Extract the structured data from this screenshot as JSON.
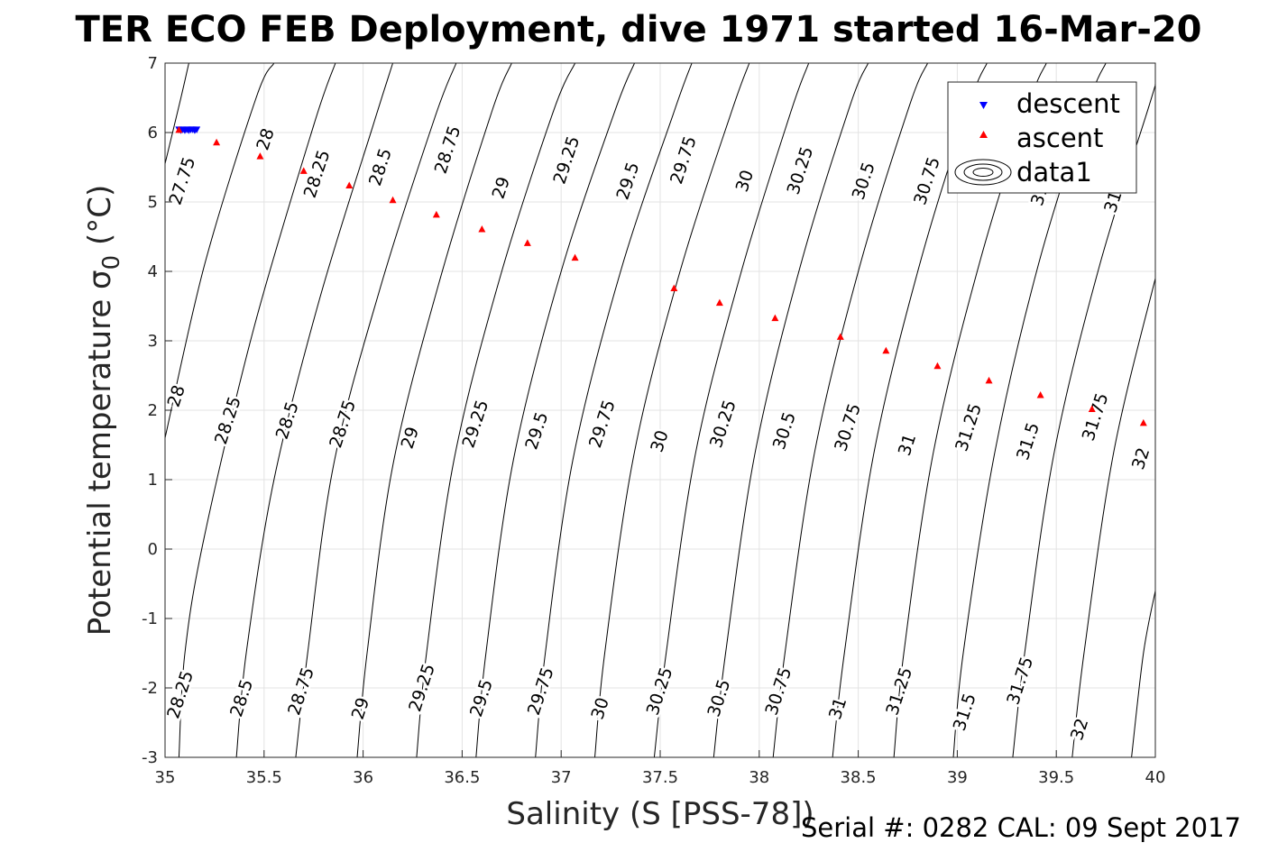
{
  "chart_data": {
    "type": "scatter",
    "title": "TER ECO FEB Deployment, dive 1971 started 16-Mar-20",
    "xlabel": "Salinity (S [PSS-78])",
    "ylabel": "Potential temperature σ",
    "ylabel_subscript": "0",
    "ylabel_unit": " (°C)",
    "footer": "Serial #: 0282  CAL: 09 Sept 2017",
    "xlim": [
      35,
      40
    ],
    "ylim": [
      -3,
      7
    ],
    "xticks": [
      35,
      35.5,
      36,
      36.5,
      37,
      37.5,
      38,
      38.5,
      39,
      39.5,
      40
    ],
    "xtick_labels": [
      "35",
      "35.5",
      "36",
      "36.5",
      "37",
      "37.5",
      "38",
      "38.5",
      "39",
      "39.5",
      "40"
    ],
    "yticks": [
      -3,
      -2,
      -1,
      0,
      1,
      2,
      3,
      4,
      5,
      6,
      7
    ],
    "ytick_labels": [
      "-3",
      "-2",
      "-1",
      "0",
      "1",
      "2",
      "3",
      "4",
      "5",
      "6",
      "7"
    ],
    "grid": true,
    "legend_position": "top-right",
    "legend": [
      "descent",
      "ascent",
      "data1"
    ],
    "series": [
      {
        "name": "descent",
        "marker": "triangle-down",
        "color": "#0000ff",
        "points": [
          [
            35.07,
            6.04
          ],
          [
            35.08,
            6.03
          ],
          [
            35.09,
            6.04
          ],
          [
            35.1,
            6.03
          ],
          [
            35.11,
            6.04
          ],
          [
            35.12,
            6.03
          ],
          [
            35.13,
            6.04
          ],
          [
            35.14,
            6.04
          ],
          [
            35.15,
            6.03
          ],
          [
            35.16,
            6.04
          ]
        ]
      },
      {
        "name": "ascent",
        "marker": "triangle-up",
        "color": "#ff0000",
        "points": [
          [
            35.07,
            6.04
          ],
          [
            35.26,
            5.86
          ],
          [
            35.48,
            5.66
          ],
          [
            35.7,
            5.45
          ],
          [
            35.93,
            5.24
          ],
          [
            36.15,
            5.03
          ],
          [
            36.37,
            4.82
          ],
          [
            36.6,
            4.61
          ],
          [
            36.83,
            4.41
          ],
          [
            37.07,
            4.2
          ],
          [
            37.57,
            3.76
          ],
          [
            37.8,
            3.55
          ],
          [
            38.08,
            3.33
          ],
          [
            38.41,
            3.06
          ],
          [
            38.64,
            2.86
          ],
          [
            38.9,
            2.64
          ],
          [
            39.16,
            2.43
          ],
          [
            39.42,
            2.22
          ],
          [
            39.68,
            2.02
          ],
          [
            39.94,
            1.82
          ]
        ]
      },
      {
        "name": "data1",
        "marker": "contour",
        "color": "#000000",
        "contours": [
          {
            "label": "27.75",
            "points": [
              [
                35.0,
                5.55
              ],
              [
                35.08,
                6.5
              ],
              [
                35.12,
                7.0
              ]
            ]
          },
          {
            "label": "28",
            "points": [
              [
                35.0,
                1.6
              ],
              [
                35.2,
                4.1
              ],
              [
                35.46,
                6.5
              ],
              [
                35.55,
                7.0
              ]
            ]
          },
          {
            "label": "28.25",
            "points": [
              [
                35.07,
                -3.0
              ],
              [
                35.1,
                -1.5
              ],
              [
                35.2,
                0.2
              ],
              [
                35.45,
                3.2
              ],
              [
                35.75,
                6.1
              ],
              [
                35.86,
                7.0
              ]
            ]
          },
          {
            "label": "28.5",
            "points": [
              [
                35.36,
                -3.0
              ],
              [
                35.41,
                -1.5
              ],
              [
                35.55,
                1.0
              ],
              [
                35.78,
                3.6
              ],
              [
                36.05,
                6.1
              ],
              [
                36.15,
                7.0
              ]
            ]
          },
          {
            "label": "28.75",
            "points": [
              [
                35.66,
                -3.0
              ],
              [
                35.72,
                -1.5
              ],
              [
                35.85,
                1.2
              ],
              [
                36.08,
                3.7
              ],
              [
                36.36,
                6.2
              ],
              [
                36.47,
                7.0
              ]
            ]
          },
          {
            "label": "29",
            "points": [
              [
                35.97,
                -3.0
              ],
              [
                36.02,
                -1.5
              ],
              [
                36.15,
                1.2
              ],
              [
                36.38,
                3.8
              ],
              [
                36.65,
                6.3
              ],
              [
                36.75,
                7.0
              ]
            ]
          },
          {
            "label": "29.25",
            "points": [
              [
                36.27,
                -3.0
              ],
              [
                36.32,
                -1.5
              ],
              [
                36.46,
                1.3
              ],
              [
                36.69,
                3.9
              ],
              [
                36.96,
                6.3
              ],
              [
                37.07,
                7.0
              ]
            ]
          },
          {
            "label": "29.5",
            "points": [
              [
                36.57,
                -3.0
              ],
              [
                36.62,
                -1.5
              ],
              [
                36.76,
                1.3
              ],
              [
                37.0,
                4.0
              ],
              [
                37.27,
                6.3
              ],
              [
                37.37,
                7.0
              ]
            ]
          },
          {
            "label": "29.75",
            "points": [
              [
                36.87,
                -3.0
              ],
              [
                36.92,
                -1.5
              ],
              [
                37.06,
                1.3
              ],
              [
                37.3,
                4.0
              ],
              [
                37.57,
                6.3
              ],
              [
                37.66,
                7.0
              ]
            ]
          },
          {
            "label": "30",
            "points": [
              [
                37.17,
                -3.0
              ],
              [
                37.22,
                -1.5
              ],
              [
                37.37,
                1.4
              ],
              [
                37.6,
                4.0
              ],
              [
                37.86,
                6.3
              ],
              [
                37.95,
                7.0
              ]
            ]
          },
          {
            "label": "30.25",
            "points": [
              [
                37.47,
                -3.0
              ],
              [
                37.53,
                -1.5
              ],
              [
                37.68,
                1.4
              ],
              [
                37.91,
                4.0
              ],
              [
                38.16,
                6.3
              ],
              [
                38.25,
                7.0
              ]
            ]
          },
          {
            "label": "30.5",
            "points": [
              [
                37.77,
                -3.0
              ],
              [
                37.83,
                -1.5
              ],
              [
                37.98,
                1.4
              ],
              [
                38.21,
                4.1
              ],
              [
                38.46,
                6.4
              ],
              [
                38.55,
                7.0
              ]
            ]
          },
          {
            "label": "30.75",
            "points": [
              [
                38.07,
                -3.0
              ],
              [
                38.13,
                -1.5
              ],
              [
                38.28,
                1.4
              ],
              [
                38.51,
                4.1
              ],
              [
                38.76,
                6.4
              ],
              [
                38.85,
                7.0
              ]
            ]
          },
          {
            "label": "31",
            "points": [
              [
                38.37,
                -3.0
              ],
              [
                38.43,
                -1.5
              ],
              [
                38.58,
                1.4
              ],
              [
                38.81,
                4.1
              ],
              [
                39.06,
                6.4
              ],
              [
                39.15,
                7.0
              ]
            ]
          },
          {
            "label": "31.25",
            "points": [
              [
                38.68,
                -3.0
              ],
              [
                38.73,
                -1.5
              ],
              [
                38.88,
                1.4
              ],
              [
                39.11,
                4.1
              ],
              [
                39.36,
                6.4
              ],
              [
                39.45,
                7.0
              ]
            ]
          },
          {
            "label": "31.5",
            "points": [
              [
                38.98,
                -3.0
              ],
              [
                39.03,
                -1.5
              ],
              [
                39.19,
                1.4
              ],
              [
                39.41,
                4.1
              ],
              [
                39.66,
                6.4
              ],
              [
                39.75,
                7.0
              ]
            ]
          },
          {
            "label": "31.75",
            "points": [
              [
                39.28,
                -3.0
              ],
              [
                39.34,
                -1.5
              ],
              [
                39.49,
                1.4
              ],
              [
                39.72,
                4.1
              ],
              [
                39.97,
                6.4
              ],
              [
                40.0,
                6.7
              ]
            ]
          },
          {
            "label": "32",
            "points": [
              [
                39.58,
                -3.0
              ],
              [
                39.64,
                -1.5
              ],
              [
                39.79,
                1.4
              ],
              [
                40.0,
                3.9
              ]
            ]
          },
          {
            "label": "",
            "points": [
              [
                39.88,
                -3.0
              ],
              [
                39.94,
                -1.5
              ],
              [
                40.0,
                -0.6
              ]
            ]
          }
        ],
        "contour_labels": [
          {
            "text": "27.75",
            "x": 35.09,
            "y": 5.3
          },
          {
            "text": "28",
            "x": 35.51,
            "y": 5.9
          },
          {
            "text": "28.25",
            "x": 35.77,
            "y": 5.4
          },
          {
            "text": "28.5",
            "x": 36.09,
            "y": 5.5
          },
          {
            "text": "28.75",
            "x": 36.43,
            "y": 5.75
          },
          {
            "text": "29",
            "x": 36.7,
            "y": 5.2
          },
          {
            "text": "29.25",
            "x": 37.03,
            "y": 5.6
          },
          {
            "text": "29.5",
            "x": 37.34,
            "y": 5.3
          },
          {
            "text": "29.75",
            "x": 37.62,
            "y": 5.6
          },
          {
            "text": "30",
            "x": 37.93,
            "y": 5.3
          },
          {
            "text": "30.25",
            "x": 38.21,
            "y": 5.45
          },
          {
            "text": "30.5",
            "x": 38.53,
            "y": 5.3
          },
          {
            "text": "30.75",
            "x": 38.85,
            "y": 5.3
          },
          {
            "text": "31",
            "x": 39.42,
            "y": 5.1
          },
          {
            "text": "31",
            "x": 39.79,
            "y": 5.0
          },
          {
            "text": "28",
            "x": 35.06,
            "y": 2.2
          },
          {
            "text": "28.25",
            "x": 35.32,
            "y": 1.85
          },
          {
            "text": "28.5",
            "x": 35.62,
            "y": 1.85
          },
          {
            "text": "28.75",
            "x": 35.9,
            "y": 1.8
          },
          {
            "text": "29",
            "x": 36.24,
            "y": 1.6
          },
          {
            "text": "29.25",
            "x": 36.57,
            "y": 1.8
          },
          {
            "text": "29.5",
            "x": 36.88,
            "y": 1.7
          },
          {
            "text": "29.75",
            "x": 37.21,
            "y": 1.8
          },
          {
            "text": "30",
            "x": 37.5,
            "y": 1.55
          },
          {
            "text": "30.25",
            "x": 37.82,
            "y": 1.8
          },
          {
            "text": "30.5",
            "x": 38.13,
            "y": 1.7
          },
          {
            "text": "30.75",
            "x": 38.45,
            "y": 1.75
          },
          {
            "text": "31",
            "x": 38.75,
            "y": 1.5
          },
          {
            "text": "31.25",
            "x": 39.06,
            "y": 1.75
          },
          {
            "text": "31.5",
            "x": 39.36,
            "y": 1.55
          },
          {
            "text": "31.75",
            "x": 39.7,
            "y": 1.9
          },
          {
            "text": "32",
            "x": 39.93,
            "y": 1.3
          },
          {
            "text": "28.25",
            "x": 35.08,
            "y": -2.1
          },
          {
            "text": "28.5",
            "x": 35.39,
            "y": -2.15
          },
          {
            "text": "28.75",
            "x": 35.69,
            "y": -2.05
          },
          {
            "text": "29",
            "x": 35.99,
            "y": -2.3
          },
          {
            "text": "29.25",
            "x": 36.3,
            "y": -2.0
          },
          {
            "text": "29.5",
            "x": 36.6,
            "y": -2.15
          },
          {
            "text": "29.75",
            "x": 36.9,
            "y": -2.05
          },
          {
            "text": "30",
            "x": 37.2,
            "y": -2.3
          },
          {
            "text": "30.25",
            "x": 37.5,
            "y": -2.05
          },
          {
            "text": "30.5",
            "x": 37.8,
            "y": -2.15
          },
          {
            "text": "30.75",
            "x": 38.1,
            "y": -2.05
          },
          {
            "text": "31",
            "x": 38.4,
            "y": -2.3
          },
          {
            "text": "31.25",
            "x": 38.71,
            "y": -2.05
          },
          {
            "text": "31.5",
            "x": 39.04,
            "y": -2.35
          },
          {
            "text": "31.75",
            "x": 39.32,
            "y": -1.9
          },
          {
            "text": "32",
            "x": 39.62,
            "y": -2.6
          }
        ]
      }
    ]
  }
}
